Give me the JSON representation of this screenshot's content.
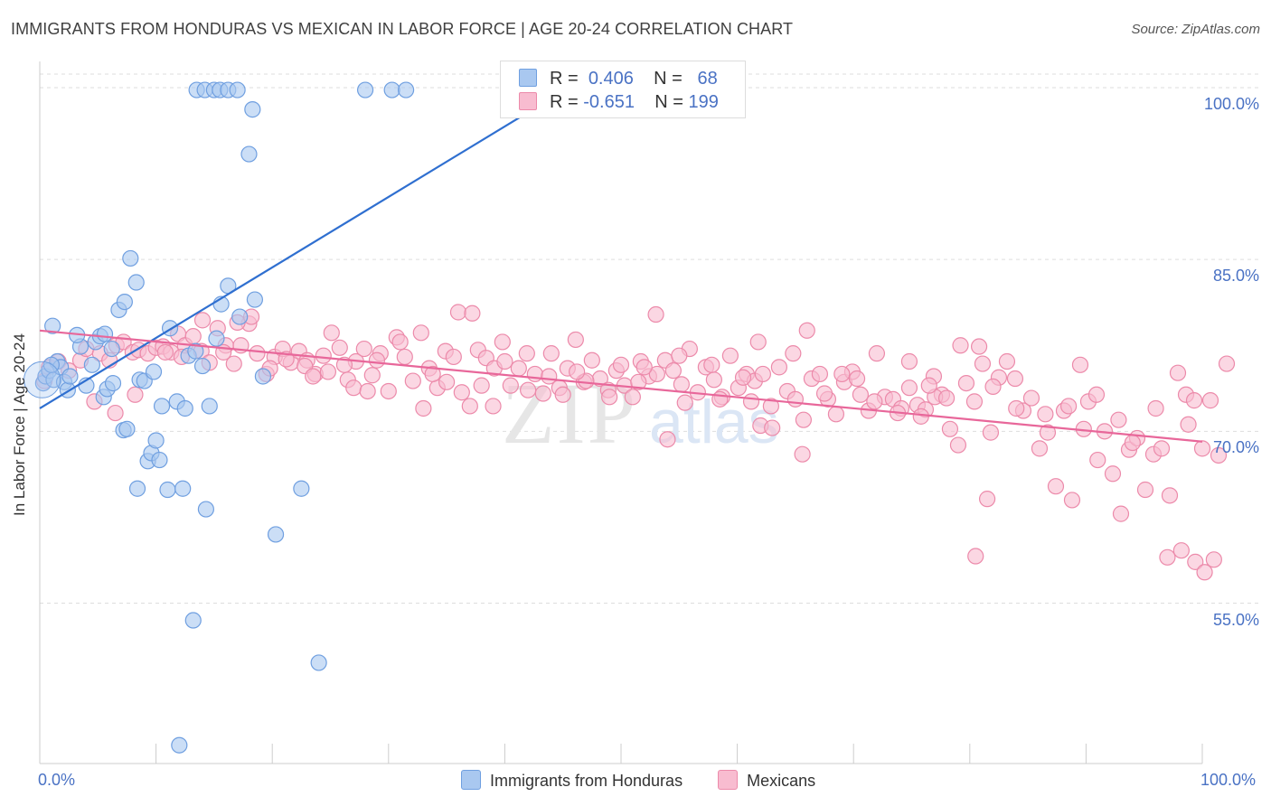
{
  "title": "IMMIGRANTS FROM HONDURAS VS MEXICAN IN LABOR FORCE | AGE 20-24 CORRELATION CHART",
  "source": "Source: ZipAtlas.com",
  "watermark": "ZIPatlas",
  "legend": {
    "r_label": "R =",
    "n_label": "N =",
    "rows": [
      {
        "name": "Immigrants from Honduras",
        "r": "0.406",
        "n": "68",
        "fill": "#a9c8f0",
        "stroke": "#6f9fe0"
      },
      {
        "name": "Mexicans",
        "r": "-0.651",
        "n": "199",
        "fill": "#f8bcd0",
        "stroke": "#ec8aaa"
      }
    ]
  },
  "chart_data": {
    "type": "scatter",
    "title": "IMMIGRANTS FROM HONDURAS VS MEXICAN IN LABOR FORCE | AGE 20-24 CORRELATION CHART",
    "xlabel": "",
    "ylabel": "In Labor Force | Age 20-24",
    "xlim": [
      0,
      100
    ],
    "ylim": [
      41,
      101.5
    ],
    "x_tick_labels": [
      "0.0%",
      "100.0%"
    ],
    "y_ticks": [
      55,
      70,
      85,
      100
    ],
    "y_tick_labels": [
      "55.0%",
      "70.0%",
      "85.0%",
      "100.0%"
    ],
    "colors": {
      "honduras_fill": "#a9c8f0",
      "honduras_stroke": "#6f9fe0",
      "honduras_line": "#2f6fd0",
      "mexican_fill": "#f8bcd0",
      "mexican_stroke": "#ec8aaa",
      "mexican_line": "#e8679a",
      "grid": "#dddddd",
      "tick": "#4a72c4"
    },
    "series": [
      {
        "name": "Immigrants from Honduras",
        "trend": {
          "x": [
            0,
            45.5
          ],
          "y": [
            72.0,
            100.0
          ]
        },
        "points": [
          [
            0.3,
            74.2
          ],
          [
            0.5,
            74.8
          ],
          [
            0.8,
            75.3
          ],
          [
            1.2,
            74.5
          ],
          [
            1.5,
            76.1
          ],
          [
            1.8,
            75.6
          ],
          [
            2.1,
            74.3
          ],
          [
            2.4,
            73.6
          ],
          [
            1.0,
            75.8
          ],
          [
            3.5,
            77.4
          ],
          [
            3.2,
            78.4
          ],
          [
            4.0,
            74.0
          ],
          [
            4.5,
            75.8
          ],
          [
            4.8,
            77.8
          ],
          [
            5.5,
            73.0
          ],
          [
            5.8,
            73.7
          ],
          [
            6.3,
            74.2
          ],
          [
            6.8,
            80.6
          ],
          [
            7.3,
            81.3
          ],
          [
            7.8,
            85.1
          ],
          [
            8.3,
            83.0
          ],
          [
            8.6,
            74.5
          ],
          [
            9.0,
            74.4
          ],
          [
            9.3,
            67.4
          ],
          [
            9.6,
            68.1
          ],
          [
            10.0,
            69.2
          ],
          [
            10.3,
            67.5
          ],
          [
            7.2,
            70.1
          ],
          [
            7.5,
            70.2
          ],
          [
            11.0,
            64.9
          ],
          [
            11.8,
            72.6
          ],
          [
            12.5,
            72.0
          ],
          [
            12.3,
            65.0
          ],
          [
            12.8,
            76.6
          ],
          [
            13.4,
            77.0
          ],
          [
            14.0,
            75.7
          ],
          [
            14.6,
            72.2
          ],
          [
            14.3,
            63.2
          ],
          [
            15.2,
            78.1
          ],
          [
            15.6,
            81.1
          ],
          [
            16.2,
            82.7
          ],
          [
            17.2,
            80.0
          ],
          [
            18.5,
            81.5
          ],
          [
            19.2,
            74.8
          ],
          [
            20.3,
            61.0
          ],
          [
            22.5,
            65.0
          ],
          [
            13.2,
            53.5
          ],
          [
            12.0,
            42.6
          ],
          [
            24.0,
            49.8
          ],
          [
            8.4,
            65.0
          ],
          [
            10.5,
            72.2
          ],
          [
            11.2,
            79.0
          ],
          [
            9.8,
            75.2
          ],
          [
            6.2,
            77.2
          ],
          [
            5.2,
            78.3
          ],
          [
            5.6,
            78.5
          ],
          [
            1.1,
            79.2
          ],
          [
            2.6,
            74.8
          ],
          [
            13.5,
            99.8
          ],
          [
            14.2,
            99.8
          ],
          [
            15.0,
            99.8
          ],
          [
            15.5,
            99.8
          ],
          [
            16.2,
            99.8
          ],
          [
            17.0,
            99.8
          ],
          [
            18.3,
            98.1
          ],
          [
            18.0,
            94.2
          ],
          [
            28.0,
            99.8
          ],
          [
            30.3,
            99.8
          ],
          [
            31.5,
            99.8
          ]
        ]
      },
      {
        "name": "Mexicans",
        "trend": {
          "x": [
            0,
            100
          ],
          "y": [
            78.8,
            69.1
          ]
        },
        "points": [
          [
            0.4,
            74.4
          ],
          [
            0.8,
            75.6
          ],
          [
            1.6,
            76.1
          ],
          [
            2.5,
            75.3
          ],
          [
            3.5,
            76.2
          ],
          [
            4.0,
            77.2
          ],
          [
            4.7,
            72.6
          ],
          [
            5.2,
            76.8
          ],
          [
            6.0,
            76.2
          ],
          [
            6.6,
            77.5
          ],
          [
            7.2,
            77.8
          ],
          [
            8.0,
            76.9
          ],
          [
            8.5,
            77.1
          ],
          [
            9.3,
            76.8
          ],
          [
            10.0,
            77.3
          ],
          [
            10.6,
            77.4
          ],
          [
            11.3,
            76.9
          ],
          [
            11.9,
            78.5
          ],
          [
            12.5,
            77.5
          ],
          [
            13.2,
            78.3
          ],
          [
            13.9,
            77.0
          ],
          [
            14.6,
            76.0
          ],
          [
            15.3,
            79.0
          ],
          [
            16.0,
            77.5
          ],
          [
            16.7,
            75.9
          ],
          [
            17.3,
            77.5
          ],
          [
            18.0,
            79.4
          ],
          [
            18.7,
            76.8
          ],
          [
            19.5,
            75.0
          ],
          [
            20.2,
            76.5
          ],
          [
            20.9,
            77.2
          ],
          [
            21.6,
            76.0
          ],
          [
            22.3,
            77.0
          ],
          [
            23.0,
            76.2
          ],
          [
            23.7,
            75.0
          ],
          [
            24.4,
            76.6
          ],
          [
            25.1,
            78.6
          ],
          [
            25.8,
            77.3
          ],
          [
            26.5,
            74.5
          ],
          [
            27.2,
            76.1
          ],
          [
            27.9,
            77.2
          ],
          [
            28.6,
            74.9
          ],
          [
            29.3,
            76.8
          ],
          [
            30.0,
            73.5
          ],
          [
            30.7,
            78.2
          ],
          [
            31.4,
            76.5
          ],
          [
            32.1,
            74.4
          ],
          [
            32.8,
            78.6
          ],
          [
            33.5,
            75.5
          ],
          [
            34.2,
            73.8
          ],
          [
            34.9,
            77.0
          ],
          [
            35.6,
            76.5
          ],
          [
            36.3,
            73.4
          ],
          [
            37.0,
            72.2
          ],
          [
            37.7,
            77.1
          ],
          [
            38.4,
            76.4
          ],
          [
            39.1,
            75.5
          ],
          [
            39.8,
            77.8
          ],
          [
            40.5,
            74.0
          ],
          [
            41.2,
            75.5
          ],
          [
            41.9,
            76.8
          ],
          [
            42.6,
            75.0
          ],
          [
            43.3,
            73.3
          ],
          [
            44.0,
            76.8
          ],
          [
            44.7,
            73.8
          ],
          [
            45.4,
            75.5
          ],
          [
            46.1,
            78.0
          ],
          [
            46.8,
            74.3
          ],
          [
            47.5,
            76.2
          ],
          [
            48.2,
            74.6
          ],
          [
            48.9,
            73.6
          ],
          [
            49.6,
            75.3
          ],
          [
            50.3,
            74.0
          ],
          [
            51.0,
            73.0
          ],
          [
            51.7,
            76.1
          ],
          [
            52.4,
            74.8
          ],
          [
            53.1,
            75.0
          ],
          [
            53.8,
            76.2
          ],
          [
            54.5,
            75.3
          ],
          [
            55.2,
            74.1
          ],
          [
            55.9,
            77.2
          ],
          [
            56.6,
            73.4
          ],
          [
            57.3,
            75.6
          ],
          [
            58.0,
            74.5
          ],
          [
            58.7,
            73.0
          ],
          [
            59.4,
            76.6
          ],
          [
            60.1,
            73.8
          ],
          [
            60.8,
            75.0
          ],
          [
            61.5,
            74.4
          ],
          [
            62.2,
            75.0
          ],
          [
            62.9,
            72.2
          ],
          [
            63.6,
            75.6
          ],
          [
            64.3,
            73.5
          ],
          [
            65.0,
            72.8
          ],
          [
            65.7,
            71.0
          ],
          [
            66.4,
            74.6
          ],
          [
            67.1,
            75.0
          ],
          [
            67.8,
            72.8
          ],
          [
            68.5,
            71.5
          ],
          [
            69.2,
            74.3
          ],
          [
            69.9,
            75.2
          ],
          [
            70.6,
            73.2
          ],
          [
            71.3,
            71.8
          ],
          [
            72.0,
            76.8
          ],
          [
            72.7,
            73.0
          ],
          [
            73.4,
            72.8
          ],
          [
            74.1,
            72.0
          ],
          [
            74.8,
            73.8
          ],
          [
            75.5,
            72.3
          ],
          [
            76.2,
            71.9
          ],
          [
            76.9,
            74.8
          ],
          [
            77.6,
            73.2
          ],
          [
            78.3,
            70.2
          ],
          [
            79.0,
            68.8
          ],
          [
            79.7,
            74.2
          ],
          [
            80.4,
            72.6
          ],
          [
            81.1,
            75.9
          ],
          [
            81.8,
            69.9
          ],
          [
            82.5,
            74.7
          ],
          [
            83.2,
            76.1
          ],
          [
            83.9,
            74.6
          ],
          [
            84.6,
            71.8
          ],
          [
            85.3,
            72.9
          ],
          [
            86.0,
            68.5
          ],
          [
            86.7,
            69.9
          ],
          [
            87.4,
            65.2
          ],
          [
            88.1,
            71.8
          ],
          [
            88.8,
            64.0
          ],
          [
            89.5,
            75.8
          ],
          [
            90.2,
            72.6
          ],
          [
            90.9,
            73.2
          ],
          [
            91.6,
            70.0
          ],
          [
            92.3,
            66.3
          ],
          [
            93.0,
            62.8
          ],
          [
            93.7,
            68.4
          ],
          [
            94.4,
            69.4
          ],
          [
            95.1,
            64.9
          ],
          [
            95.8,
            68.0
          ],
          [
            96.5,
            68.5
          ],
          [
            97.2,
            64.4
          ],
          [
            97.9,
            75.1
          ],
          [
            98.6,
            73.2
          ],
          [
            99.3,
            72.7
          ],
          [
            100.0,
            68.5
          ],
          [
            100.7,
            72.7
          ],
          [
            101.4,
            67.9
          ],
          [
            102.1,
            75.9
          ],
          [
            97.0,
            59.0
          ],
          [
            98.2,
            59.6
          ],
          [
            99.4,
            58.6
          ],
          [
            100.2,
            57.7
          ],
          [
            101.0,
            58.8
          ],
          [
            80.5,
            59.1
          ],
          [
            81.5,
            64.1
          ],
          [
            79.2,
            77.5
          ],
          [
            80.8,
            77.4
          ],
          [
            36.0,
            80.4
          ],
          [
            37.2,
            80.3
          ],
          [
            53.0,
            80.2
          ],
          [
            66.0,
            78.8
          ],
          [
            61.8,
            77.8
          ],
          [
            74.8,
            76.1
          ],
          [
            55.5,
            72.5
          ],
          [
            62.0,
            70.5
          ],
          [
            63.0,
            70.3
          ],
          [
            65.6,
            68.0
          ],
          [
            54.0,
            69.3
          ],
          [
            27.0,
            73.8
          ],
          [
            29.0,
            76.2
          ],
          [
            33.0,
            72.0
          ],
          [
            39.0,
            72.2
          ],
          [
            42.0,
            73.6
          ],
          [
            45.0,
            73.2
          ],
          [
            47.0,
            74.4
          ],
          [
            50.0,
            75.8
          ],
          [
            52.0,
            75.6
          ],
          [
            55.0,
            76.6
          ],
          [
            57.8,
            75.8
          ],
          [
            60.5,
            74.7
          ],
          [
            61.2,
            72.6
          ],
          [
            67.5,
            73.3
          ],
          [
            70.3,
            74.6
          ],
          [
            71.8,
            72.6
          ],
          [
            73.8,
            71.6
          ],
          [
            75.8,
            71.3
          ],
          [
            77.0,
            73.0
          ],
          [
            78.0,
            72.9
          ],
          [
            82.0,
            73.9
          ],
          [
            84.0,
            72.0
          ],
          [
            86.5,
            71.5
          ],
          [
            88.5,
            72.2
          ],
          [
            89.8,
            70.2
          ],
          [
            91.0,
            67.5
          ],
          [
            92.8,
            71.0
          ],
          [
            94.0,
            69.0
          ],
          [
            96.0,
            72.0
          ],
          [
            98.8,
            70.6
          ],
          [
            6.5,
            71.6
          ],
          [
            8.2,
            73.2
          ],
          [
            10.8,
            76.9
          ],
          [
            12.2,
            76.5
          ],
          [
            14.0,
            79.7
          ],
          [
            15.8,
            76.9
          ],
          [
            17.0,
            79.5
          ],
          [
            18.2,
            80.0
          ],
          [
            19.8,
            75.5
          ],
          [
            21.2,
            76.3
          ],
          [
            22.8,
            75.7
          ],
          [
            23.5,
            74.8
          ],
          [
            24.8,
            75.2
          ],
          [
            26.2,
            75.8
          ],
          [
            28.2,
            73.5
          ],
          [
            31.0,
            77.8
          ],
          [
            33.8,
            75.0
          ],
          [
            35.0,
            74.3
          ],
          [
            38.0,
            74.0
          ],
          [
            40.0,
            76.1
          ],
          [
            43.8,
            74.8
          ],
          [
            46.2,
            75.2
          ],
          [
            49.0,
            73.0
          ],
          [
            51.5,
            74.3
          ],
          [
            58.5,
            72.8
          ],
          [
            64.8,
            76.8
          ],
          [
            69.0,
            75.0
          ],
          [
            76.5,
            74.0
          ]
        ]
      }
    ]
  }
}
